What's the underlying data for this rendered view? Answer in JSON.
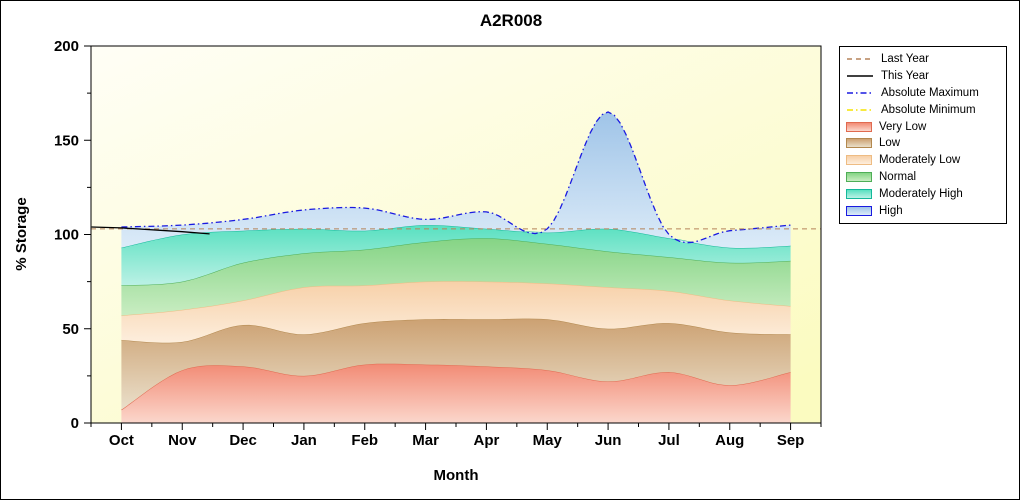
{
  "chart_data": {
    "type": "area",
    "title": "A2R008",
    "xlabel": "Month",
    "ylabel": "% Storage",
    "ylim": [
      0,
      200
    ],
    "yticks": [
      0,
      50,
      100,
      150,
      200
    ],
    "categories": [
      "Oct",
      "Nov",
      "Dec",
      "Jan",
      "Feb",
      "Mar",
      "Apr",
      "May",
      "Jun",
      "Jul",
      "Aug",
      "Sep"
    ],
    "plot_bg": {
      "top_left": "#fffef6",
      "bottom_right": "#fbfbc0"
    },
    "bands": [
      {
        "name": "Very Low",
        "top": [
          7,
          28,
          30,
          25,
          31,
          31,
          30,
          28,
          22,
          27,
          20,
          27
        ],
        "fill_top": "#f28a74",
        "fill_bottom": "#fbd7cc",
        "stroke": "#e06a50"
      },
      {
        "name": "Low",
        "top": [
          44,
          43,
          52,
          47,
          53,
          55,
          55,
          55,
          50,
          53,
          48,
          47
        ],
        "fill_top": "#cca172",
        "fill_bottom": "#eadfca",
        "stroke": "#b3894f"
      },
      {
        "name": "Moderately Low",
        "top": [
          57,
          60,
          65,
          72,
          73,
          75,
          75,
          74,
          72,
          70,
          65,
          62
        ],
        "fill_top": "#f7d0a8",
        "fill_bottom": "#fdeedd",
        "stroke": "#eebc83"
      },
      {
        "name": "Normal",
        "top": [
          73,
          75,
          85,
          90,
          92,
          96,
          98,
          95,
          91,
          88,
          85,
          86
        ],
        "fill_top": "#85d485",
        "fill_bottom": "#c9edc2",
        "stroke": "#4fae57"
      },
      {
        "name": "Moderately High",
        "top": [
          93,
          100,
          102,
          103,
          102,
          105,
          103,
          101,
          103,
          98,
          93,
          94
        ],
        "fill_top": "#58e0c0",
        "fill_bottom": "#bbf1e5",
        "stroke": "#14b89a"
      },
      {
        "name": "High",
        "top": [
          104,
          105,
          108,
          113,
          114,
          108,
          112,
          103,
          165,
          100,
          102,
          105
        ],
        "fill_top": "#9fc4e8",
        "fill_bottom": "#dcebf8",
        "stroke": "#1a1ae0",
        "stroke_dash": "6 3 1.5 3",
        "stroke_width": 1.3
      }
    ],
    "lines": [
      {
        "name": "Last Year",
        "value": 103,
        "color": "#b5835a",
        "dash": "5 4",
        "width": 1
      },
      {
        "name": "This Year",
        "x": [
          -0.49,
          0,
          1,
          1.45
        ],
        "values": [
          104,
          103.5,
          101.5,
          100.3
        ],
        "color": "#000000",
        "width": 1.3
      },
      {
        "name": "Absolute Minimum",
        "value": 0,
        "color": "#f5e400",
        "dash": "6 3 1.5 3",
        "width": 1
      }
    ]
  },
  "legend": {
    "items": [
      {
        "label": "Last Year",
        "swatch": "line",
        "color": "#b5835a",
        "dash": "5 4"
      },
      {
        "label": "This Year",
        "swatch": "line",
        "color": "#000000",
        "dash": ""
      },
      {
        "label": "Absolute Maximum",
        "swatch": "line",
        "color": "#1a1ae0",
        "dash": "6 3 1.5 3"
      },
      {
        "label": "Absolute Minimum",
        "swatch": "line",
        "color": "#f5e400",
        "dash": "6 3 1.5 3"
      },
      {
        "label": "Very Low",
        "swatch": "box",
        "fill_top": "#f28a74",
        "fill_bottom": "#fbd7cc",
        "stroke": "#e06a50"
      },
      {
        "label": "Low",
        "swatch": "box",
        "fill_top": "#cca172",
        "fill_bottom": "#eadfca",
        "stroke": "#b3894f"
      },
      {
        "label": "Moderately Low",
        "swatch": "box",
        "fill_top": "#f7d0a8",
        "fill_bottom": "#fdeedd",
        "stroke": "#eebc83"
      },
      {
        "label": "Normal",
        "swatch": "box",
        "fill_top": "#85d485",
        "fill_bottom": "#c9edc2",
        "stroke": "#4fae57"
      },
      {
        "label": "Moderately High",
        "swatch": "box",
        "fill_top": "#58e0c0",
        "fill_bottom": "#bbf1e5",
        "stroke": "#14b89a"
      },
      {
        "label": "High",
        "swatch": "box",
        "fill_top": "#9fc4e8",
        "fill_bottom": "#dcebf8",
        "stroke": "#1a1ae0"
      }
    ]
  }
}
